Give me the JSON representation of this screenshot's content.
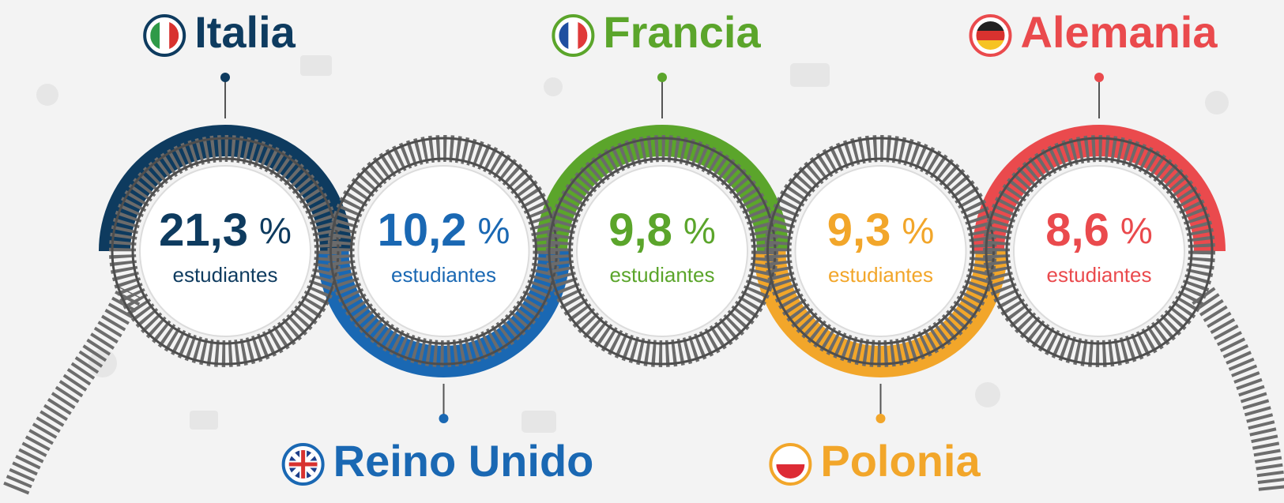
{
  "items": [
    {
      "country": "Italia",
      "value": "21,3",
      "unit": "%",
      "caption": "estudiantes",
      "color": "#0e3b5f",
      "position": "top"
    },
    {
      "country": "Reino Unido",
      "value": "10,2",
      "unit": "%",
      "caption": "estudiantes",
      "color": "#1a68b3",
      "position": "bottom"
    },
    {
      "country": "Francia",
      "value": "9,8",
      "unit": "%",
      "caption": "estudiantes",
      "color": "#5ba52b",
      "position": "top"
    },
    {
      "country": "Polonia",
      "value": "9,3",
      "unit": "%",
      "caption": "estudiantes",
      "color": "#f2a62a",
      "position": "bottom"
    },
    {
      "country": "Alemania",
      "value": "8,6",
      "unit": "%",
      "caption": "estudiantes",
      "color": "#ea4a4d",
      "position": "top"
    }
  ]
}
